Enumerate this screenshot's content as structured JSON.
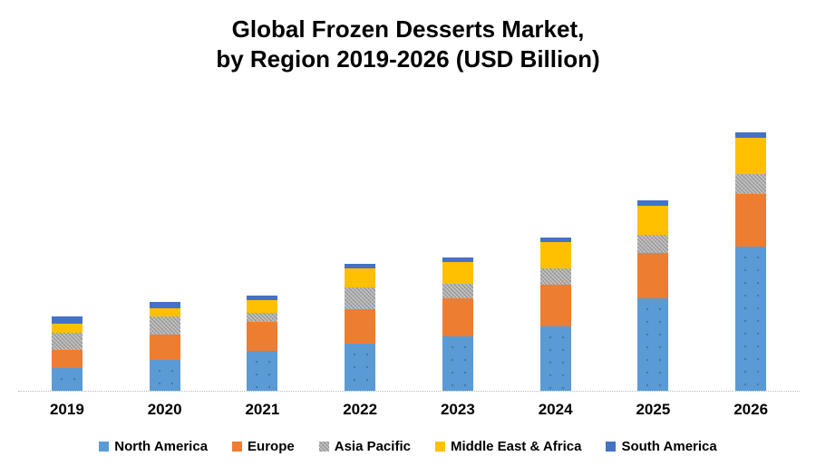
{
  "title": {
    "line1": "Global Frozen Desserts Market,",
    "line2": "by Region 2019-2026 (USD Billion)"
  },
  "chart_data": {
    "type": "bar",
    "stacked": true,
    "title": "Global Frozen Desserts Market, by Region 2019-2026 (USD Billion)",
    "categories": [
      "2019",
      "2020",
      "2021",
      "2022",
      "2023",
      "2024",
      "2025",
      "2026"
    ],
    "series": [
      {
        "name": "North America",
        "color": "#5B9BD5",
        "pattern": "dots",
        "values": [
          25,
          34,
          44,
          52,
          60,
          71,
          102,
          159
        ]
      },
      {
        "name": "Europe",
        "color": "#ED7D31",
        "pattern": "solid",
        "values": [
          20,
          28,
          32,
          38,
          42,
          46,
          50,
          58
        ]
      },
      {
        "name": "Asia Pacific",
        "color": "#A5A5A5",
        "pattern": "hatch",
        "values": [
          19,
          20,
          10,
          24,
          16,
          18,
          20,
          22
        ]
      },
      {
        "name": "Middle East & Africa",
        "color": "#FFC000",
        "pattern": "solid",
        "values": [
          10,
          9,
          14,
          21,
          24,
          29,
          32,
          40
        ]
      },
      {
        "name": "South America",
        "color": "#4472C4",
        "pattern": "solid",
        "values": [
          8,
          7,
          5,
          5,
          5,
          5,
          6,
          6
        ]
      }
    ],
    "stack_totals": [
      82,
      98,
      105,
      140,
      147,
      169,
      210,
      285
    ],
    "value_units": "USD Billion (y-axis unlabeled; values estimated from bar heights, relative scale)",
    "xlabel": "",
    "ylabel": "",
    "y_axis_visible": false,
    "gridlines": false,
    "baseline_color": "#b9b9b9",
    "legend_position": "bottom"
  }
}
